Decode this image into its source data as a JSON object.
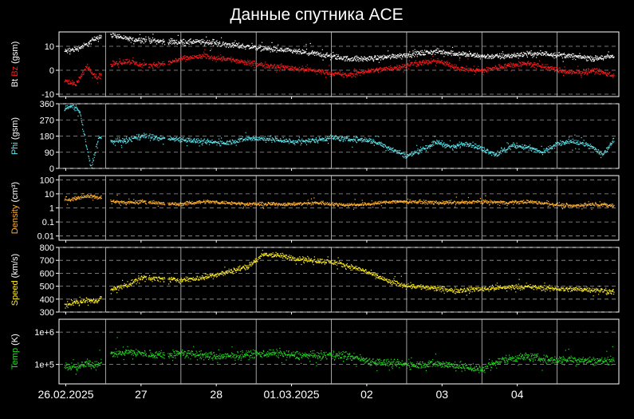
{
  "title": "Данные спутника ACE",
  "colors": {
    "background": "#000000",
    "frame": "#ffffff",
    "grid": "#9a9a9a",
    "bt": "#ffffff",
    "bz": "#ff1a1a",
    "phi": "#5fe8f0",
    "density": "#ffb030",
    "speed": "#ffee20",
    "temp": "#22dd22"
  },
  "x_axis": {
    "tick_labels": [
      "26.02.2025",
      "27",
      "28",
      "01.03.2025",
      "02",
      "03",
      "04"
    ]
  },
  "chart_data": [
    {
      "type": "scatter",
      "panel": "magnetic-field",
      "ylabel_parts": [
        "Bt",
        "Bz",
        "(gsm)"
      ],
      "ylim": [
        -11,
        16
      ],
      "yticks": [
        -10,
        0,
        10
      ],
      "ytick_labels": [
        "-10",
        "0",
        "10"
      ],
      "grid": true,
      "x_range_days": [
        -0.6,
        6.8
      ],
      "series": [
        {
          "name": "Bt",
          "color": "#ffffff",
          "points": [
            [
              -0.55,
              8
            ],
            [
              -0.4,
              9
            ],
            [
              -0.25,
              11
            ],
            [
              -0.12,
              14
            ],
            [
              0.1,
              15
            ],
            [
              0.3,
              13
            ],
            [
              0.5,
              13
            ],
            [
              0.8,
              12
            ],
            [
              1.0,
              12
            ],
            [
              1.3,
              12
            ],
            [
              1.6,
              11
            ],
            [
              1.9,
              10
            ],
            [
              2.2,
              9
            ],
            [
              2.5,
              8
            ],
            [
              2.8,
              7
            ],
            [
              3.0,
              6
            ],
            [
              3.2,
              5
            ],
            [
              3.5,
              5
            ],
            [
              3.8,
              6
            ],
            [
              4.1,
              7
            ],
            [
              4.4,
              8
            ],
            [
              4.7,
              7
            ],
            [
              5.0,
              6
            ],
            [
              5.3,
              6
            ],
            [
              5.6,
              7
            ],
            [
              5.9,
              7
            ],
            [
              6.2,
              6
            ],
            [
              6.5,
              5
            ],
            [
              6.75,
              6
            ]
          ]
        },
        {
          "name": "Bz",
          "color": "#ff1a1a",
          "points": [
            [
              -0.55,
              -4
            ],
            [
              -0.4,
              -6
            ],
            [
              -0.25,
              2
            ],
            [
              -0.12,
              -3
            ],
            [
              0.1,
              3
            ],
            [
              0.3,
              4
            ],
            [
              0.5,
              2
            ],
            [
              0.8,
              3
            ],
            [
              1.0,
              5
            ],
            [
              1.3,
              6
            ],
            [
              1.6,
              5
            ],
            [
              1.9,
              3
            ],
            [
              2.2,
              2
            ],
            [
              2.5,
              1
            ],
            [
              2.8,
              0
            ],
            [
              3.0,
              -1
            ],
            [
              3.2,
              -2
            ],
            [
              3.5,
              0
            ],
            [
              3.8,
              1
            ],
            [
              4.1,
              3
            ],
            [
              4.4,
              4
            ],
            [
              4.7,
              1
            ],
            [
              5.0,
              0
            ],
            [
              5.3,
              2
            ],
            [
              5.6,
              3
            ],
            [
              5.9,
              1
            ],
            [
              6.2,
              -1
            ],
            [
              6.5,
              0
            ],
            [
              6.75,
              -2
            ]
          ]
        }
      ]
    },
    {
      "type": "scatter",
      "panel": "phi",
      "ylabel": "Phi (gsm)",
      "ylim": [
        0,
        360
      ],
      "yticks": [
        0,
        90,
        180,
        270,
        360
      ],
      "ytick_labels": [
        "0",
        "90",
        "180",
        "270",
        "360"
      ],
      "grid": true,
      "series": [
        {
          "name": "Phi",
          "color": "#5fe8f0",
          "points": [
            [
              -0.55,
              335
            ],
            [
              -0.45,
              350
            ],
            [
              -0.35,
              320
            ],
            [
              -0.2,
              0
            ],
            [
              -0.1,
              175
            ],
            [
              0.1,
              150
            ],
            [
              0.3,
              160
            ],
            [
              0.5,
              185
            ],
            [
              0.7,
              170
            ],
            [
              1.0,
              165
            ],
            [
              1.3,
              150
            ],
            [
              1.6,
              145
            ],
            [
              1.9,
              170
            ],
            [
              2.2,
              165
            ],
            [
              2.5,
              150
            ],
            [
              2.8,
              160
            ],
            [
              3.0,
              175
            ],
            [
              3.2,
              165
            ],
            [
              3.5,
              160
            ],
            [
              3.7,
              130
            ],
            [
              4.0,
              70
            ],
            [
              4.2,
              110
            ],
            [
              4.4,
              150
            ],
            [
              4.6,
              120
            ],
            [
              4.8,
              145
            ],
            [
              5.0,
              110
            ],
            [
              5.2,
              80
            ],
            [
              5.4,
              130
            ],
            [
              5.6,
              120
            ],
            [
              5.8,
              90
            ],
            [
              6.0,
              140
            ],
            [
              6.2,
              150
            ],
            [
              6.4,
              135
            ],
            [
              6.6,
              80
            ],
            [
              6.75,
              160
            ]
          ]
        }
      ]
    },
    {
      "type": "scatter",
      "panel": "density",
      "ylabel": "Density (cm³)",
      "ylog": true,
      "ylim": [
        0.005,
        200
      ],
      "yticks": [
        0.01,
        0.1,
        1,
        10,
        100
      ],
      "ytick_labels": [
        "0.01",
        "0.1",
        "1",
        "10",
        "100"
      ],
      "grid": true,
      "series": [
        {
          "name": "Density",
          "color": "#ffb030",
          "points": [
            [
              -0.55,
              4
            ],
            [
              -0.4,
              5
            ],
            [
              -0.25,
              8
            ],
            [
              -0.12,
              6
            ],
            [
              0.1,
              3
            ],
            [
              0.3,
              2.5
            ],
            [
              0.5,
              3
            ],
            [
              0.8,
              2
            ],
            [
              1.0,
              2
            ],
            [
              1.3,
              3
            ],
            [
              1.6,
              2.5
            ],
            [
              1.9,
              2
            ],
            [
              2.2,
              2
            ],
            [
              2.5,
              2
            ],
            [
              2.8,
              2.5
            ],
            [
              3.0,
              2
            ],
            [
              3.2,
              1.8
            ],
            [
              3.5,
              2
            ],
            [
              3.8,
              3
            ],
            [
              4.1,
              3
            ],
            [
              4.4,
              2.5
            ],
            [
              4.7,
              2.5
            ],
            [
              5.0,
              3
            ],
            [
              5.3,
              2.5
            ],
            [
              5.6,
              3
            ],
            [
              5.9,
              2
            ],
            [
              6.2,
              1.5
            ],
            [
              6.5,
              2
            ],
            [
              6.75,
              1.5
            ]
          ]
        }
      ]
    },
    {
      "type": "scatter",
      "panel": "speed",
      "ylabel": "Speed (km/s)",
      "ylim": [
        300,
        800
      ],
      "yticks": [
        300,
        400,
        500,
        600,
        700,
        800
      ],
      "ytick_labels": [
        "300",
        "400",
        "500",
        "600",
        "700",
        "800"
      ],
      "grid": true,
      "series": [
        {
          "name": "Speed",
          "color": "#ffee20",
          "points": [
            [
              -0.55,
              355
            ],
            [
              -0.4,
              380
            ],
            [
              -0.25,
              390
            ],
            [
              -0.12,
              390
            ],
            [
              0.1,
              480
            ],
            [
              0.3,
              520
            ],
            [
              0.5,
              570
            ],
            [
              0.7,
              560
            ],
            [
              1.0,
              550
            ],
            [
              1.3,
              570
            ],
            [
              1.6,
              610
            ],
            [
              1.9,
              660
            ],
            [
              2.1,
              750
            ],
            [
              2.3,
              740
            ],
            [
              2.5,
              720
            ],
            [
              2.8,
              700
            ],
            [
              3.0,
              690
            ],
            [
              3.2,
              660
            ],
            [
              3.4,
              630
            ],
            [
              3.6,
              580
            ],
            [
              3.8,
              530
            ],
            [
              4.0,
              510
            ],
            [
              4.3,
              490
            ],
            [
              4.6,
              470
            ],
            [
              4.9,
              480
            ],
            [
              5.2,
              490
            ],
            [
              5.5,
              500
            ],
            [
              5.8,
              490
            ],
            [
              6.1,
              480
            ],
            [
              6.4,
              480
            ],
            [
              6.75,
              460
            ]
          ]
        }
      ]
    },
    {
      "type": "scatter",
      "panel": "temperature",
      "ylabel": "Temp (K)",
      "ylog": true,
      "ylim": [
        25000,
        2500000
      ],
      "yticks": [
        100000,
        1000000
      ],
      "ytick_labels": [
        "1e+5",
        "1e+6"
      ],
      "grid": true,
      "series": [
        {
          "name": "Temp",
          "color": "#22dd22",
          "points": [
            [
              -0.55,
              90000
            ],
            [
              -0.4,
              80000
            ],
            [
              -0.25,
              110000
            ],
            [
              -0.12,
              100000
            ],
            [
              0.1,
              230000
            ],
            [
              0.3,
              250000
            ],
            [
              0.5,
              220000
            ],
            [
              0.8,
              200000
            ],
            [
              1.0,
              230000
            ],
            [
              1.3,
              190000
            ],
            [
              1.6,
              180000
            ],
            [
              1.9,
              210000
            ],
            [
              2.2,
              230000
            ],
            [
              2.5,
              200000
            ],
            [
              2.8,
              190000
            ],
            [
              3.0,
              200000
            ],
            [
              3.2,
              190000
            ],
            [
              3.5,
              130000
            ],
            [
              3.8,
              110000
            ],
            [
              4.1,
              100000
            ],
            [
              4.4,
              110000
            ],
            [
              4.7,
              90000
            ],
            [
              5.0,
              70000
            ],
            [
              5.3,
              150000
            ],
            [
              5.6,
              180000
            ],
            [
              5.9,
              140000
            ],
            [
              6.2,
              150000
            ],
            [
              6.5,
              130000
            ],
            [
              6.75,
              140000
            ]
          ]
        }
      ]
    }
  ]
}
